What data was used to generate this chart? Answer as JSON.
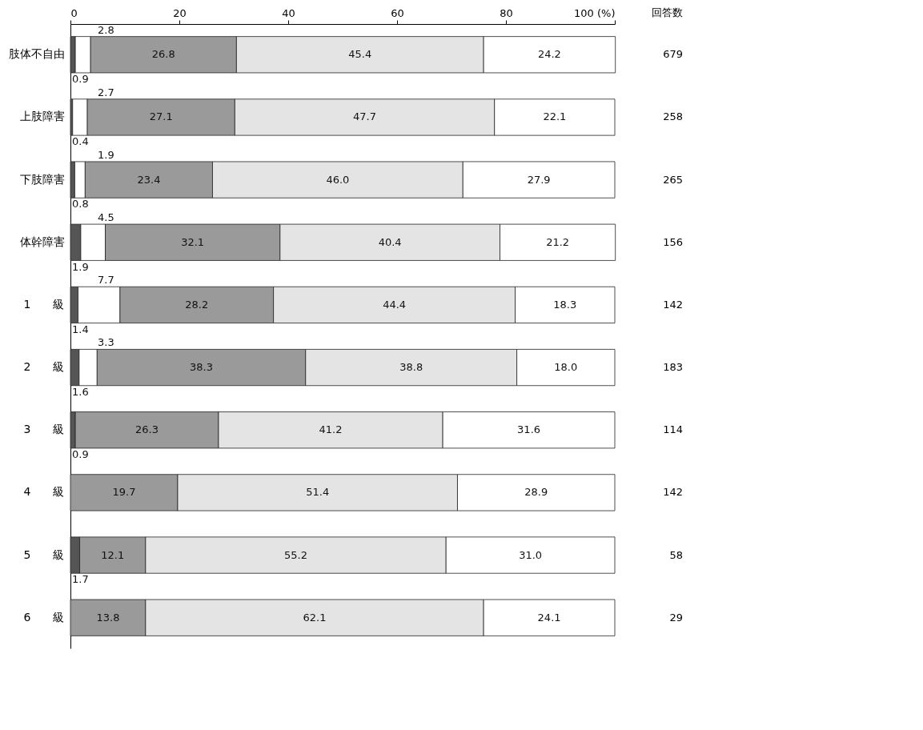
{
  "chart_data": {
    "type": "bar",
    "orientation": "horizontal",
    "stacked": true,
    "categories": [
      "肢体不自由",
      "上肢障害",
      "下肢障害",
      "体幹障害",
      "1　　級",
      "2　　級",
      "3　　級",
      "4　　級",
      "5　　級",
      "6　　級"
    ],
    "series": [
      {
        "color": "#555555",
        "values": [
          0.9,
          0.4,
          0.8,
          1.9,
          1.4,
          1.6,
          0.9,
          null,
          1.7,
          null
        ],
        "value_labels": [
          "0.9",
          "0.4",
          "0.8",
          "1.9",
          "1.4",
          "1.6",
          "0.9",
          null,
          "1.7",
          null
        ]
      },
      {
        "color": "#ffffff",
        "values": [
          2.8,
          2.7,
          1.9,
          4.5,
          7.7,
          3.3,
          null,
          null,
          null,
          null
        ],
        "value_labels": [
          "2.8",
          "2.7",
          "1.9",
          "4.5",
          "7.7",
          "3.3",
          null,
          null,
          null,
          null
        ]
      },
      {
        "color": "#9a9a9a",
        "values": [
          26.8,
          27.1,
          23.4,
          32.1,
          28.2,
          38.3,
          26.3,
          19.7,
          12.1,
          13.8
        ],
        "value_labels": [
          "26.8",
          "27.1",
          "23.4",
          "32.1",
          "28.2",
          "38.3",
          "26.3",
          "19.7",
          "12.1",
          "13.8"
        ]
      },
      {
        "color": "#e4e4e4",
        "values": [
          45.4,
          47.7,
          46.0,
          40.4,
          44.4,
          38.8,
          41.2,
          51.4,
          55.2,
          62.1
        ],
        "value_labels": [
          "45.4",
          "47.7",
          "46.0",
          "40.4",
          "44.4",
          "38.8",
          "41.2",
          "51.4",
          "55.2",
          "62.1"
        ]
      },
      {
        "color": "#ffffff",
        "values": [
          24.2,
          22.1,
          27.9,
          21.2,
          18.3,
          18.0,
          31.6,
          28.9,
          31.0,
          24.1
        ],
        "value_labels": [
          "24.2",
          "22.1",
          "27.9",
          "21.2",
          "18.3",
          "18.0",
          "31.6",
          "28.9",
          "31.0",
          "24.1"
        ]
      }
    ],
    "xlim": [
      0,
      100
    ],
    "xticks": [
      0,
      20,
      40,
      60,
      80,
      {
        "value": 100,
        "label": "100 (%)"
      }
    ],
    "grid": false,
    "legend": false,
    "annotations": [
      "回答数",
      "679",
      "258",
      "265",
      "156",
      "142",
      "183",
      "114",
      "142",
      "58",
      "29"
    ]
  }
}
